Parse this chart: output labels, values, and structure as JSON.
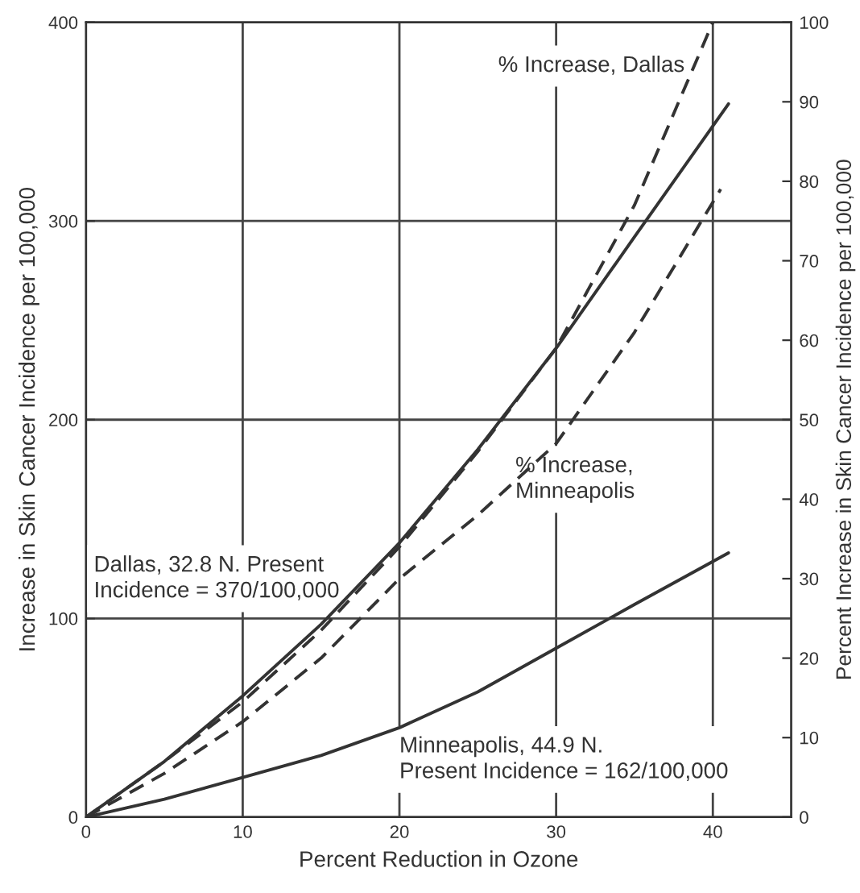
{
  "chart_data": {
    "type": "line",
    "xlabel": "Percent Reduction in Ozone",
    "ylabel": "Increase in Skin Cancer Incidence per 100,000",
    "y2label": "Percent Increase in Skin Cancer Incidence per 100,000",
    "xlim": [
      0,
      45
    ],
    "xticks": [
      0,
      10,
      20,
      30,
      40
    ],
    "ylim": [
      0,
      400
    ],
    "yticks": [
      0,
      100,
      200,
      300,
      400
    ],
    "y2lim": [
      0,
      100
    ],
    "y2ticks": [
      0,
      10,
      20,
      30,
      40,
      50,
      60,
      70,
      80,
      90,
      100
    ],
    "grid": true,
    "legend": false,
    "series": [
      {
        "name": "Dallas, 32.8 N. Present\nIncidence = 370/100,000",
        "color": "#333333",
        "line_style": "solid",
        "x": [
          0,
          5,
          10,
          15,
          20,
          25,
          30,
          35,
          41
        ],
        "values": [
          0,
          28,
          61,
          97,
          138,
          185,
          236,
          292,
          359
        ]
      },
      {
        "name": "Minneapolis, 44.9 N.\nPresent Incidence = 162/100,000",
        "color": "#333333",
        "line_style": "solid",
        "x": [
          0,
          5,
          10,
          15,
          20,
          25,
          30,
          35,
          41
        ],
        "values": [
          0,
          9,
          20,
          31,
          45,
          63,
          85,
          107,
          133
        ]
      },
      {
        "name": "% Increase, Dallas",
        "color": "#333333",
        "line_style": "dashed",
        "axis": "y2",
        "x": [
          0,
          5,
          10,
          15,
          20,
          25,
          30,
          35,
          40
        ],
        "values": [
          0,
          7,
          14.5,
          23.5,
          34,
          46,
          59,
          77,
          100
        ]
      },
      {
        "name": "% Increase,\nMinneapolis",
        "color": "#333333",
        "line_style": "dashed",
        "axis": "y2",
        "x": [
          0,
          5,
          10,
          15,
          20,
          25,
          30,
          35,
          40.5
        ],
        "values": [
          0,
          5.5,
          12,
          20,
          30,
          38,
          47,
          61,
          79
        ]
      }
    ]
  }
}
